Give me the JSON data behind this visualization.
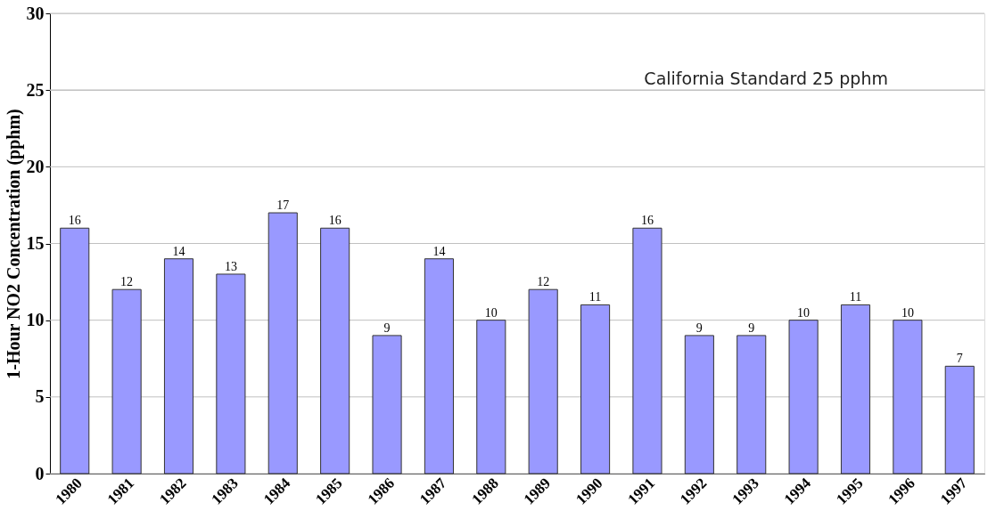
{
  "chart_data": {
    "type": "bar",
    "ylabel": "1-Hour NO2 Concentration (pphm)",
    "categories": [
      "1980",
      "1981",
      "1982",
      "1983",
      "1984",
      "1985",
      "1986",
      "1987",
      "1988",
      "1989",
      "1990",
      "1991",
      "1992",
      "1993",
      "1994",
      "1995",
      "1996",
      "1997"
    ],
    "values": [
      16,
      12,
      14,
      13,
      17,
      16,
      9,
      14,
      10,
      12,
      11,
      16,
      9,
      9,
      10,
      11,
      10,
      7
    ],
    "color": "#9999ff",
    "ylim": [
      0,
      30
    ],
    "yticks": [
      0,
      5,
      10,
      15,
      20,
      25,
      30
    ],
    "grid": "y",
    "data_labels": true,
    "ref_lines": [
      {
        "axis": "y",
        "value": 25,
        "label": "California Standard 25 pphm",
        "color": "#c0c0c0"
      }
    ]
  }
}
